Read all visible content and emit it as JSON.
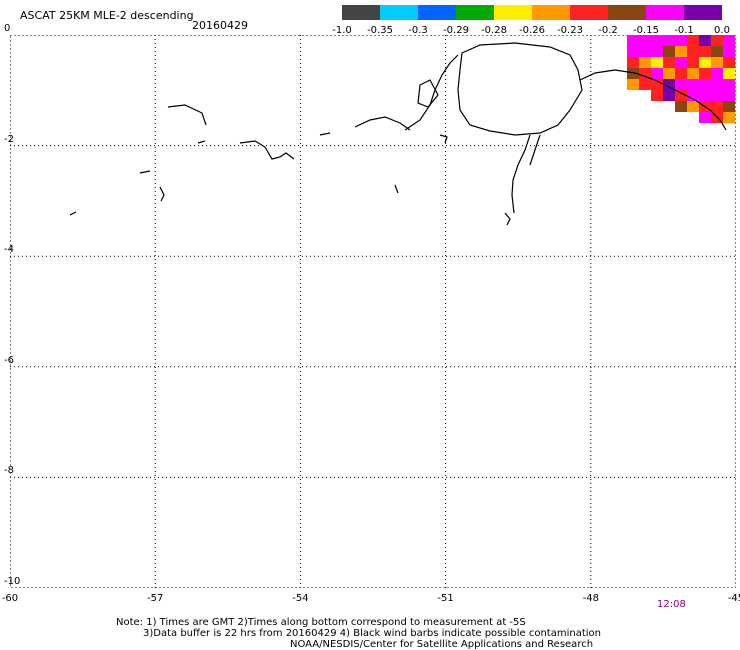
{
  "header": {
    "title": "ASCAT 25KM MLE-2 descending",
    "date": "20160429"
  },
  "colorbar": {
    "labels": [
      "-1.0",
      "-0.35",
      "-0.3",
      "-0.29",
      "-0.28",
      "-0.26",
      "-0.23",
      "-0.2",
      "-0.15",
      "-0.1",
      "0.0"
    ],
    "colors": [
      "#444444",
      "#00ccff",
      "#0066ff",
      "#00aa00",
      "#ffee00",
      "#ff9900",
      "#ff2222",
      "#8b4513",
      "#ff00ff",
      "#7700aa"
    ]
  },
  "map": {
    "x_ticks": [
      "-60",
      "-57",
      "-54",
      "-51",
      "-48",
      "-45"
    ],
    "y_ticks": [
      "0",
      "-2",
      "-4",
      "-6",
      "-8",
      "-10"
    ],
    "xlim": [
      -60,
      -45
    ],
    "ylim": [
      -10,
      0
    ],
    "grid": "dotted",
    "time_label": "12:08"
  },
  "notes": {
    "line1": "Note: 1) Times are GMT 2)Times along bottom correspond to measurement at -5S",
    "line2": "3)Data buffer is 22 hrs from 20160429 4) Black wind barbs indicate possible contamination",
    "line3": "NOAA/NESDIS/Center for Satellite Applications and Research"
  }
}
